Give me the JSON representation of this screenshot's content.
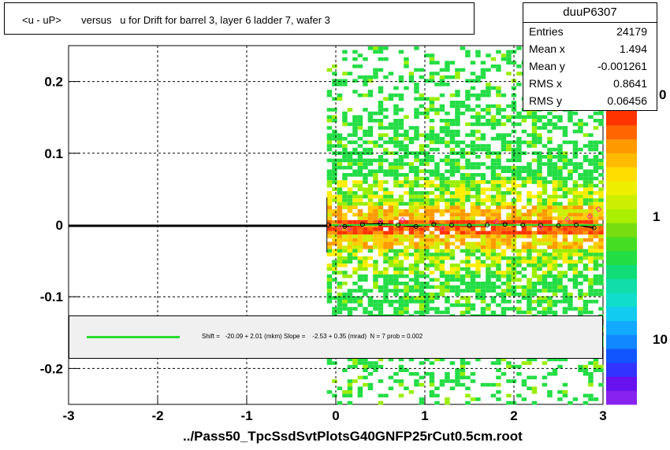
{
  "title": "<u - uP>       versus   u for Drift for barrel 3, layer 6 ladder 7, wafer 3",
  "stats": {
    "name": "duuP6307",
    "rows": [
      {
        "label": "Entries",
        "value": "24179"
      },
      {
        "label": "Mean x",
        "value": "1.494"
      },
      {
        "label": "Mean y",
        "value": "-0.001261"
      },
      {
        "label": "RMS x",
        "value": "0.8641"
      },
      {
        "label": "RMS y",
        "value": "0.06456"
      }
    ]
  },
  "fit_text": "Shift =   -20.09 + 2.01 (mkm) Slope =    -2.53 + 0.35 (mrad)  N = 7 prob = 0.002",
  "x_axis_title": "../Pass50_TpcSsdSvtPlotsG40GNFP25rCut0.5cm.root",
  "colors": {
    "fit_line": "#2ddb2d",
    "profile": "#000000",
    "markers": "#ff3399"
  },
  "chart_data": {
    "type": "heatmap",
    "xlim": [
      -3,
      3
    ],
    "ylim": [
      -0.25,
      0.25
    ],
    "x_ticks": [
      {
        "v": -3,
        "label": "-3"
      },
      {
        "v": -2,
        "label": "-2"
      },
      {
        "v": -1,
        "label": "-1"
      },
      {
        "v": 0,
        "label": "0"
      },
      {
        "v": 1,
        "label": "1"
      },
      {
        "v": 2,
        "label": "2"
      },
      {
        "v": 3,
        "label": "3"
      }
    ],
    "y_ticks": [
      {
        "v": -0.2,
        "label": "-0.2"
      },
      {
        "v": -0.1,
        "label": "-0.1"
      },
      {
        "v": 0,
        "label": "0"
      },
      {
        "v": 0.1,
        "label": "0.1"
      },
      {
        "v": 0.2,
        "label": "0.2"
      }
    ],
    "grid": true,
    "occupied_x_range": [
      -0.1,
      3.0
    ],
    "colorbar_labels": [
      {
        "v": 1,
        "label": "1"
      },
      {
        "v": 10,
        "label": "10"
      }
    ],
    "colorbar_partial_label": "0",
    "profile_points": [
      {
        "x": -0.08,
        "y": 0.0
      },
      {
        "x": 0.1,
        "y": -0.002
      },
      {
        "x": 0.3,
        "y": 0.001
      },
      {
        "x": 0.5,
        "y": 0.002
      },
      {
        "x": 0.7,
        "y": 0.0
      },
      {
        "x": 0.9,
        "y": -0.002
      },
      {
        "x": 1.1,
        "y": 0.001
      },
      {
        "x": 1.3,
        "y": 0.0
      },
      {
        "x": 1.5,
        "y": -0.001
      },
      {
        "x": 1.7,
        "y": 0.0
      },
      {
        "x": 1.9,
        "y": 0.001
      },
      {
        "x": 2.1,
        "y": 0.0
      },
      {
        "x": 2.3,
        "y": 0.0
      },
      {
        "x": 2.5,
        "y": -0.001
      },
      {
        "x": 2.7,
        "y": 0.0
      },
      {
        "x": 2.9,
        "y": -0.004
      }
    ],
    "marker_points": [
      {
        "x": 0.05,
        "y": -0.003
      },
      {
        "x": 0.15,
        "y": -0.006
      },
      {
        "x": 0.5,
        "y": 0.006
      },
      {
        "x": 0.75,
        "y": 0.007
      },
      {
        "x": 1.2,
        "y": -0.004
      },
      {
        "x": 1.8,
        "y": 0.005
      },
      {
        "x": 2.3,
        "y": -0.003
      },
      {
        "x": 2.6,
        "y": 0.008
      },
      {
        "x": 2.85,
        "y": 0.012
      },
      {
        "x": 2.95,
        "y": 0.022
      }
    ]
  }
}
